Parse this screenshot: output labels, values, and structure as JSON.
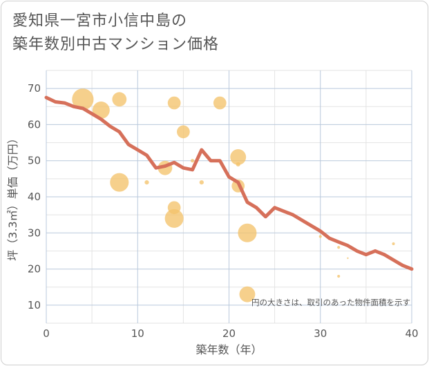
{
  "chart_data": {
    "type": "scatter",
    "title_lines": [
      "愛知県一宮市小信中島の",
      "築年数別中古マンション価格"
    ],
    "xlabel": "築年数（年）",
    "ylabel": "坪（3.3㎡）単価（万円）",
    "xlim": [
      0,
      40
    ],
    "ylim": [
      5,
      75
    ],
    "x_ticks": [
      0,
      10,
      20,
      30,
      40
    ],
    "y_ticks": [
      10,
      20,
      30,
      40,
      50,
      60,
      70
    ],
    "grid": true,
    "annotation": "円の大きさは、取引のあった物件面積を示す",
    "colors": {
      "bubble": "#f4c36b",
      "trend": "#d6705a",
      "grid_major": "#b8c8dc",
      "grid_minor": "#e3e3e3"
    },
    "bubbles": [
      {
        "x": 4,
        "y": 67,
        "size": 3.0
      },
      {
        "x": 6,
        "y": 64,
        "size": 2.4
      },
      {
        "x": 8,
        "y": 67,
        "size": 2.0
      },
      {
        "x": 8,
        "y": 44,
        "size": 2.6
      },
      {
        "x": 11,
        "y": 44,
        "size": 0.6
      },
      {
        "x": 13,
        "y": 48,
        "size": 2.0
      },
      {
        "x": 14,
        "y": 66,
        "size": 1.8
      },
      {
        "x": 14,
        "y": 37,
        "size": 1.8
      },
      {
        "x": 14,
        "y": 34,
        "size": 2.6
      },
      {
        "x": 15,
        "y": 58,
        "size": 1.8
      },
      {
        "x": 16,
        "y": 50,
        "size": 0.5
      },
      {
        "x": 17,
        "y": 44,
        "size": 0.6
      },
      {
        "x": 19,
        "y": 66,
        "size": 1.8
      },
      {
        "x": 21,
        "y": 51,
        "size": 2.2
      },
      {
        "x": 21,
        "y": 49,
        "size": 0.6
      },
      {
        "x": 21,
        "y": 43,
        "size": 1.8
      },
      {
        "x": 22,
        "y": 30,
        "size": 2.6
      },
      {
        "x": 22,
        "y": 13,
        "size": 2.2
      },
      {
        "x": 30,
        "y": 29,
        "size": 0.4
      },
      {
        "x": 32,
        "y": 26,
        "size": 0.4
      },
      {
        "x": 32,
        "y": 18,
        "size": 0.4
      },
      {
        "x": 33,
        "y": 23,
        "size": 0.15
      },
      {
        "x": 38,
        "y": 27,
        "size": 0.4
      }
    ],
    "trend": {
      "x": [
        0,
        1,
        2,
        3,
        4,
        5,
        6,
        7,
        8,
        9,
        10,
        11,
        12,
        13,
        14,
        15,
        16,
        17,
        18,
        19,
        20,
        21,
        22,
        23,
        24,
        25,
        26,
        27,
        28,
        29,
        30,
        31,
        32,
        33,
        34,
        35,
        36,
        37,
        38,
        39,
        40
      ],
      "y": [
        67.5,
        66.3,
        66,
        65,
        64.5,
        63,
        61.5,
        59.5,
        58,
        54.5,
        53,
        51.5,
        48,
        48.5,
        49.5,
        48,
        47.5,
        53,
        50,
        50,
        45.5,
        44,
        38.5,
        37,
        34.5,
        37,
        36,
        35,
        33.5,
        32,
        30.5,
        28.5,
        27.5,
        26.5,
        25,
        24,
        25,
        24,
        22.5,
        21,
        20
      ]
    }
  }
}
